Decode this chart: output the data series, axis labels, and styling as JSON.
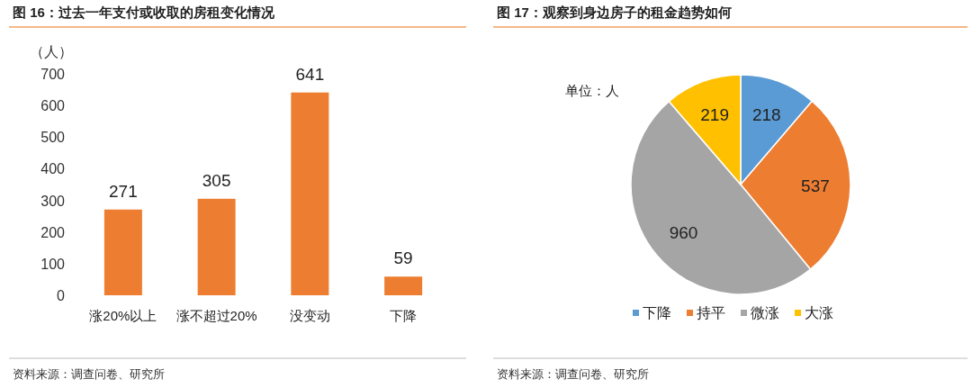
{
  "chart_data": [
    {
      "type": "bar",
      "title": "图 16：过去一年支付或收取的房租变化情况",
      "ylabel": "（人）",
      "categories": [
        "涨20%以上",
        "涨不超过20%",
        "没变动",
        "下降"
      ],
      "values": [
        271,
        305,
        641,
        59
      ],
      "color": "#ed7d31",
      "ylim": [
        0,
        700
      ],
      "yticks": [
        0,
        100,
        200,
        300,
        400,
        500,
        600,
        700
      ],
      "data_labels": true,
      "grid": false,
      "annotations": [
        "资料来源：调查问卷、研究所"
      ]
    },
    {
      "type": "pie",
      "title": "图 17：观察到身边房子的租金趋势如何",
      "categories": [
        "下降",
        "持平",
        "微涨",
        "大涨"
      ],
      "values": [
        218,
        537,
        960,
        219
      ],
      "colors": [
        "#5b9bd5",
        "#ed7d31",
        "#a5a5a5",
        "#ffc000"
      ],
      "data_labels": true,
      "legend": "bottom",
      "annotations": [
        "单位：人",
        "资料来源：调查问卷、研究所"
      ]
    }
  ]
}
